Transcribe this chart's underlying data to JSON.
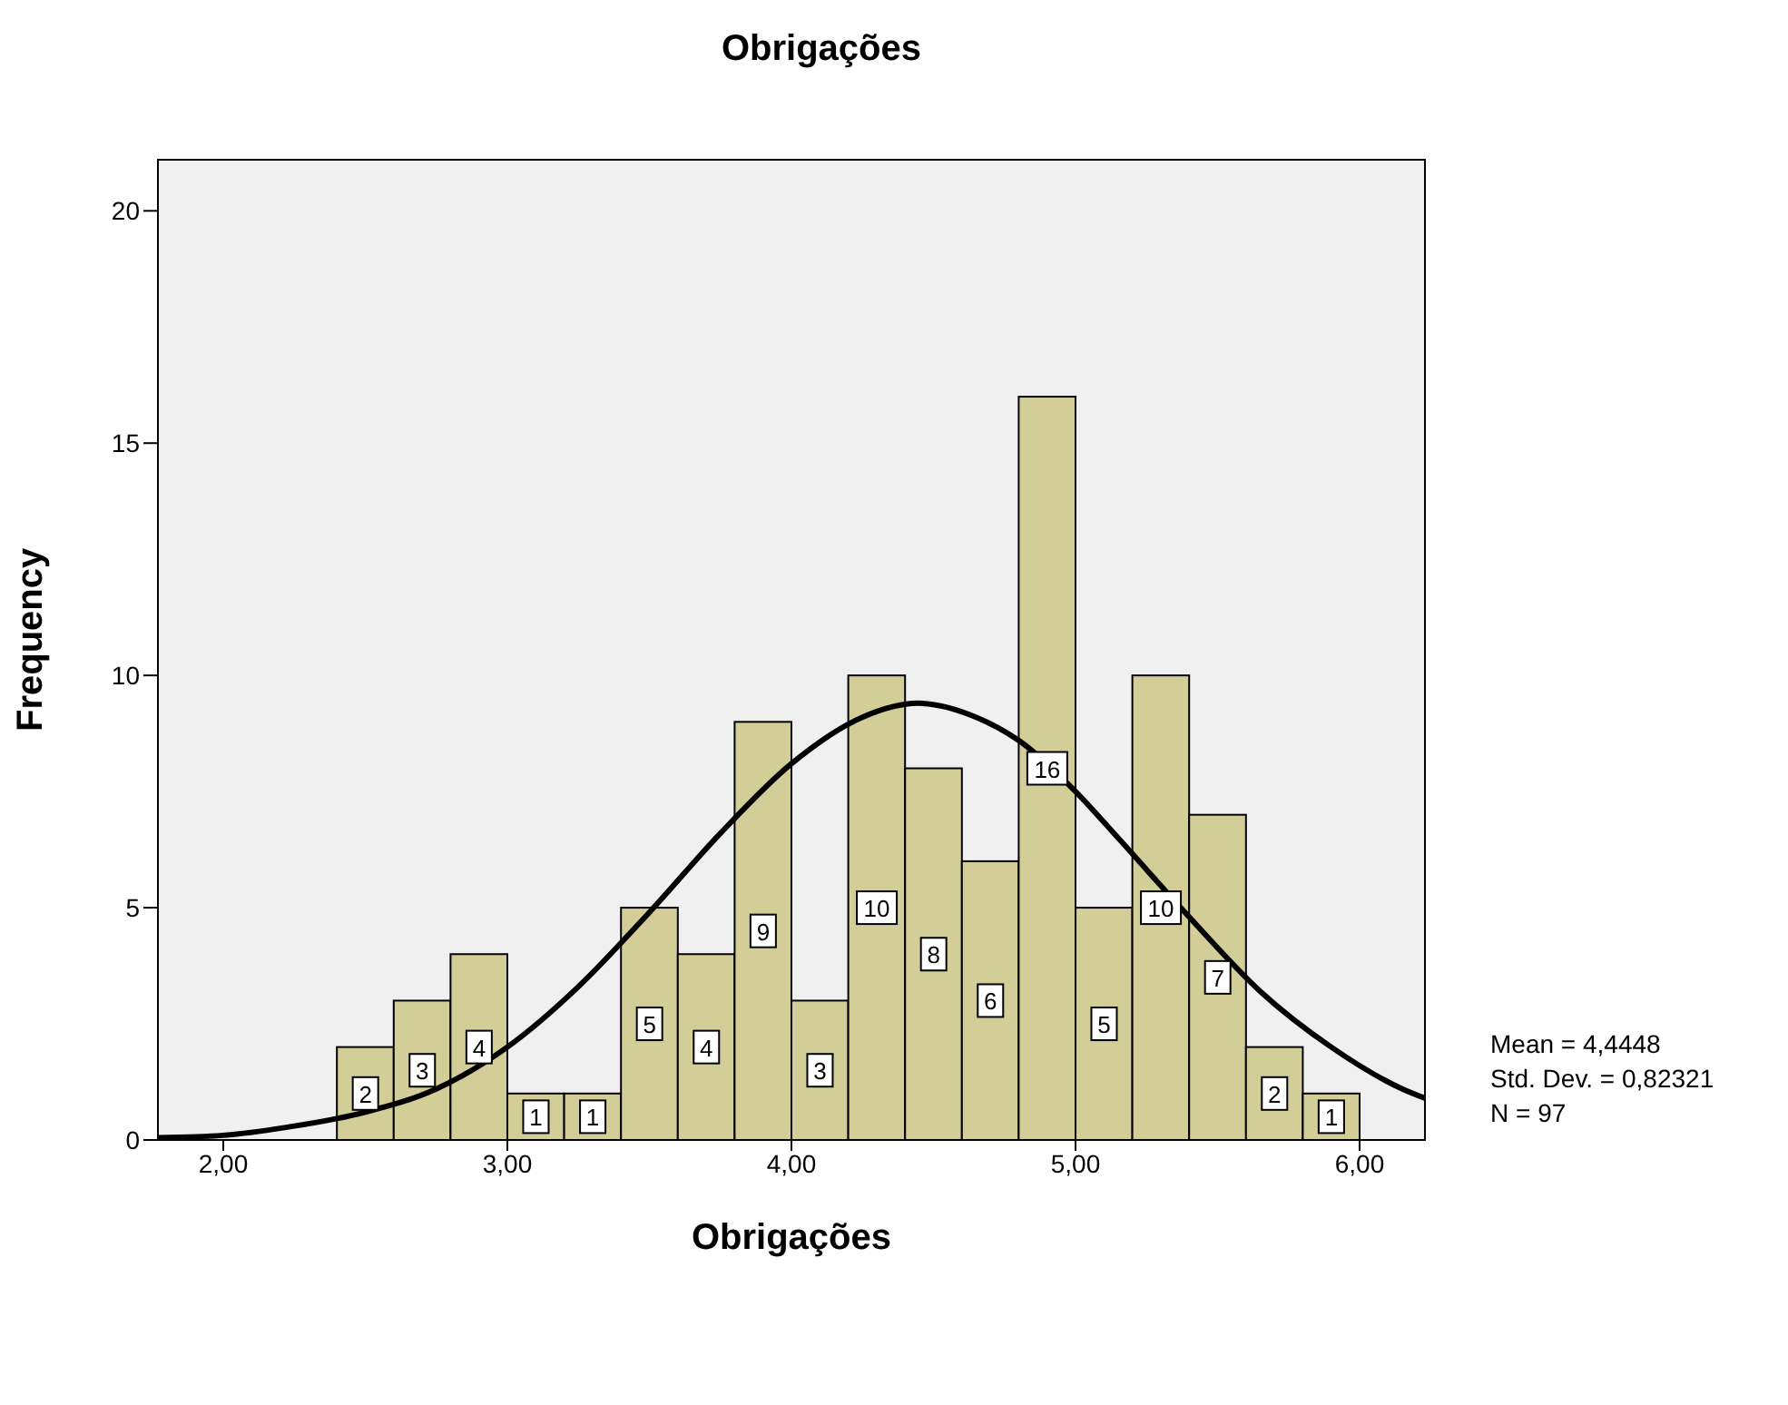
{
  "chart_data": {
    "type": "histogram",
    "title": "Obrigações",
    "xlabel": "Obrigações",
    "ylabel": "Frequency",
    "bins": [
      2.4,
      2.6,
      2.8,
      3.0,
      3.2,
      3.4,
      3.6,
      3.8,
      4.0,
      4.2,
      4.4,
      4.6,
      4.8,
      5.0,
      5.2,
      5.4,
      5.6,
      5.8,
      6.0
    ],
    "values": [
      2,
      3,
      4,
      1,
      1,
      5,
      4,
      9,
      3,
      10,
      8,
      6,
      16,
      5,
      10,
      7,
      2,
      1
    ],
    "color": "#d3ce97",
    "value_labels": [
      "2",
      "3",
      "4",
      "1",
      "1",
      "5",
      "4",
      "9",
      "3",
      "10",
      "8",
      "6",
      "16",
      "5",
      "10",
      "7",
      "2",
      "1"
    ],
    "series": [
      {
        "type": "line",
        "color": "#000000",
        "x": [
          1.77,
          2.0,
          2.25,
          2.5,
          2.75,
          3.0,
          3.25,
          3.5,
          3.75,
          4.0,
          4.25,
          4.4448,
          4.65,
          4.8,
          5.0,
          5.15,
          5.4,
          5.65,
          5.9,
          6.15,
          6.23
        ],
        "values": [
          0.05,
          0.1,
          0.3,
          0.6,
          1.1,
          2.0,
          3.3,
          4.9,
          6.6,
          8.1,
          9.1,
          9.4,
          9.1,
          8.6,
          7.5,
          6.5,
          4.8,
          3.2,
          2.0,
          1.1,
          0.9
        ]
      }
    ],
    "marker": "none",
    "line_style": "solid",
    "xlim": [
      1.77,
      6.23
    ],
    "xticks": [
      {
        "value": 2,
        "label": "2,00"
      },
      {
        "value": 3,
        "label": "3,00"
      },
      {
        "value": 4,
        "label": "4,00"
      },
      {
        "value": 5,
        "label": "5,00"
      },
      {
        "value": 6,
        "label": "6,00"
      }
    ],
    "ylim": [
      0,
      21.1
    ],
    "yticks": [
      0,
      5,
      10,
      15,
      20
    ],
    "annotations": [
      "Mean = 4,4448",
      "Std. Dev. = 0,82321",
      "N = 97"
    ]
  }
}
